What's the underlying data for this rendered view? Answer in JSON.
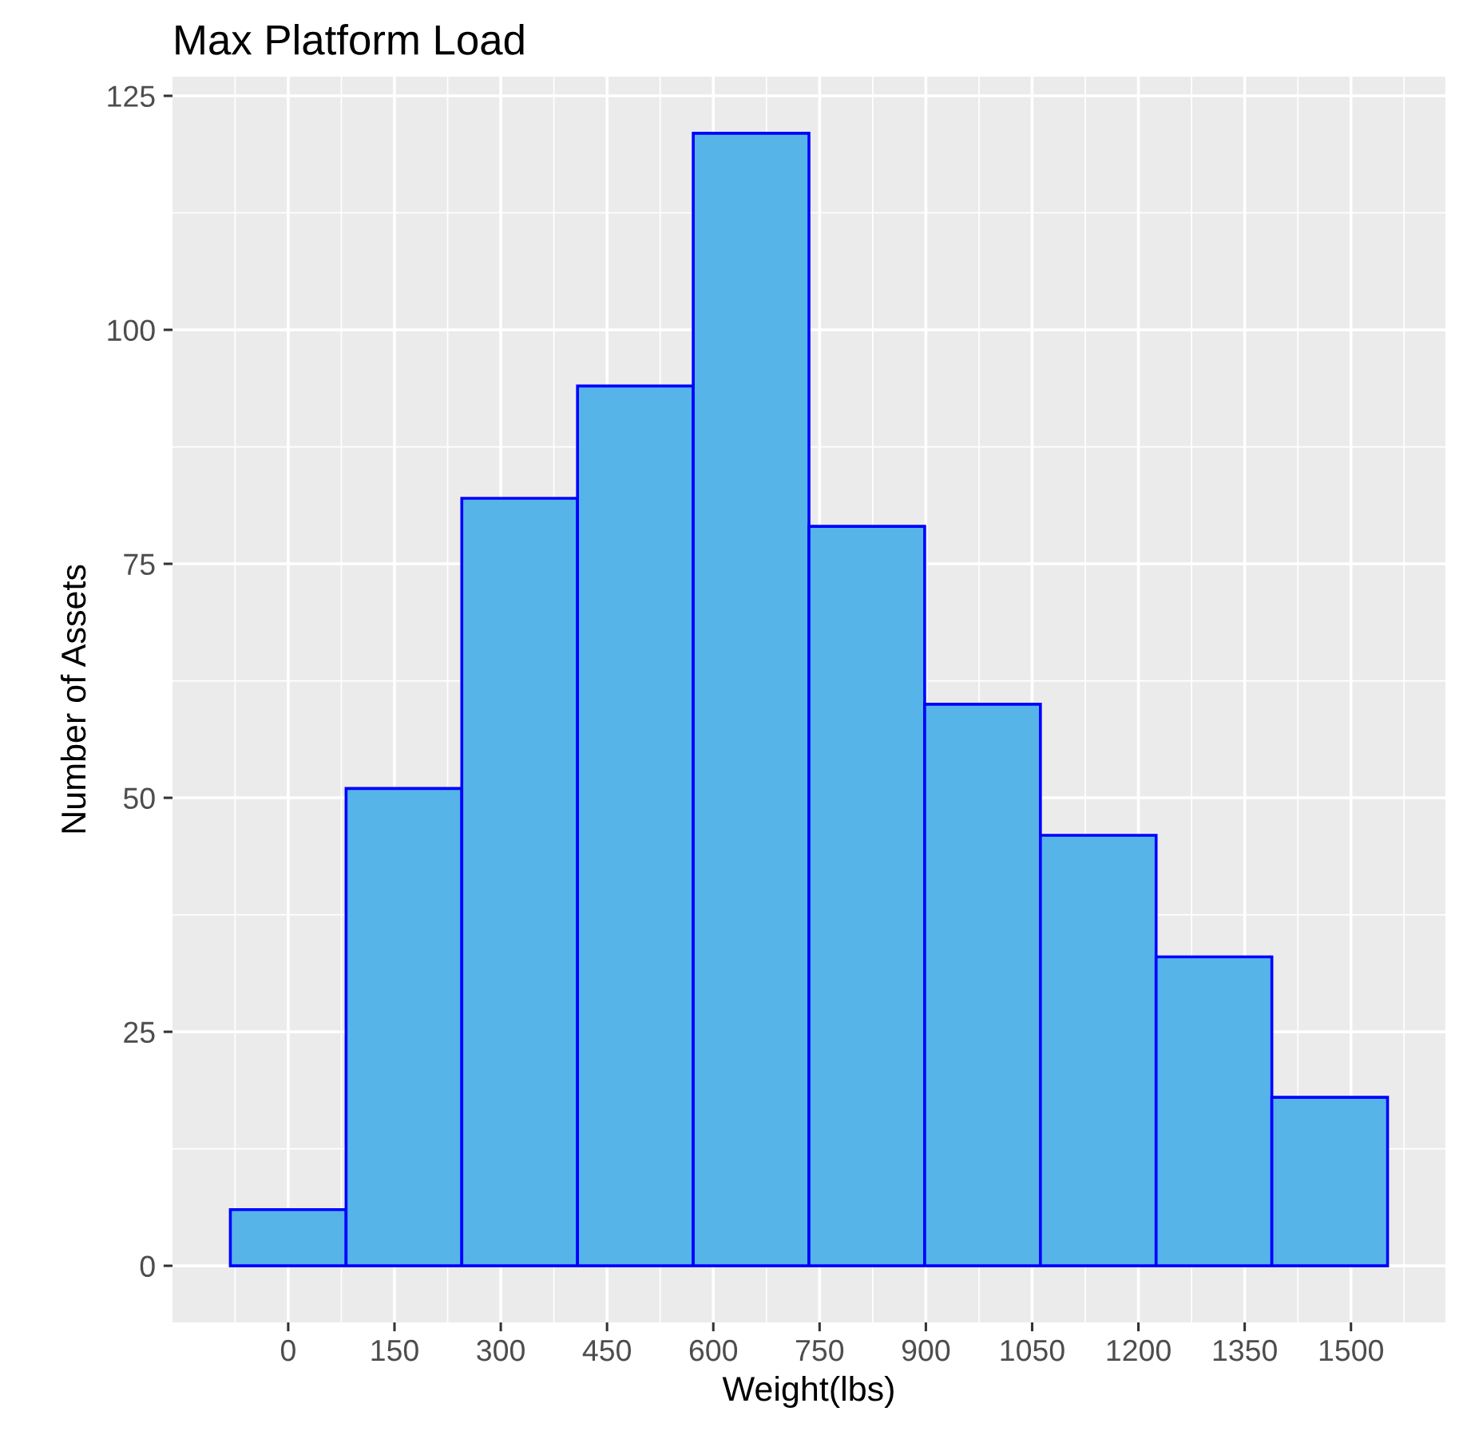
{
  "chart_data": {
    "type": "histogram",
    "title": "Max Platform Load",
    "xlabel": "Weight(lbs)",
    "ylabel": "Number of Assets",
    "bins": [
      -81.67,
      81.67,
      245,
      408.33,
      571.67,
      735,
      898.33,
      1061.67,
      1225,
      1388.33,
      1551.67
    ],
    "values": [
      6,
      51,
      82,
      94,
      121,
      79,
      60,
      46,
      33,
      18
    ],
    "color": "#56b4e9",
    "xlim": [
      -163.33,
      1633.33
    ],
    "xticks": [
      0,
      150,
      300,
      450,
      600,
      750,
      900,
      1050,
      1200,
      1350,
      1500
    ],
    "ylim": [
      -6.05,
      127.05
    ],
    "yticks": [
      0,
      25,
      50,
      75,
      100,
      125
    ],
    "grid": true
  }
}
